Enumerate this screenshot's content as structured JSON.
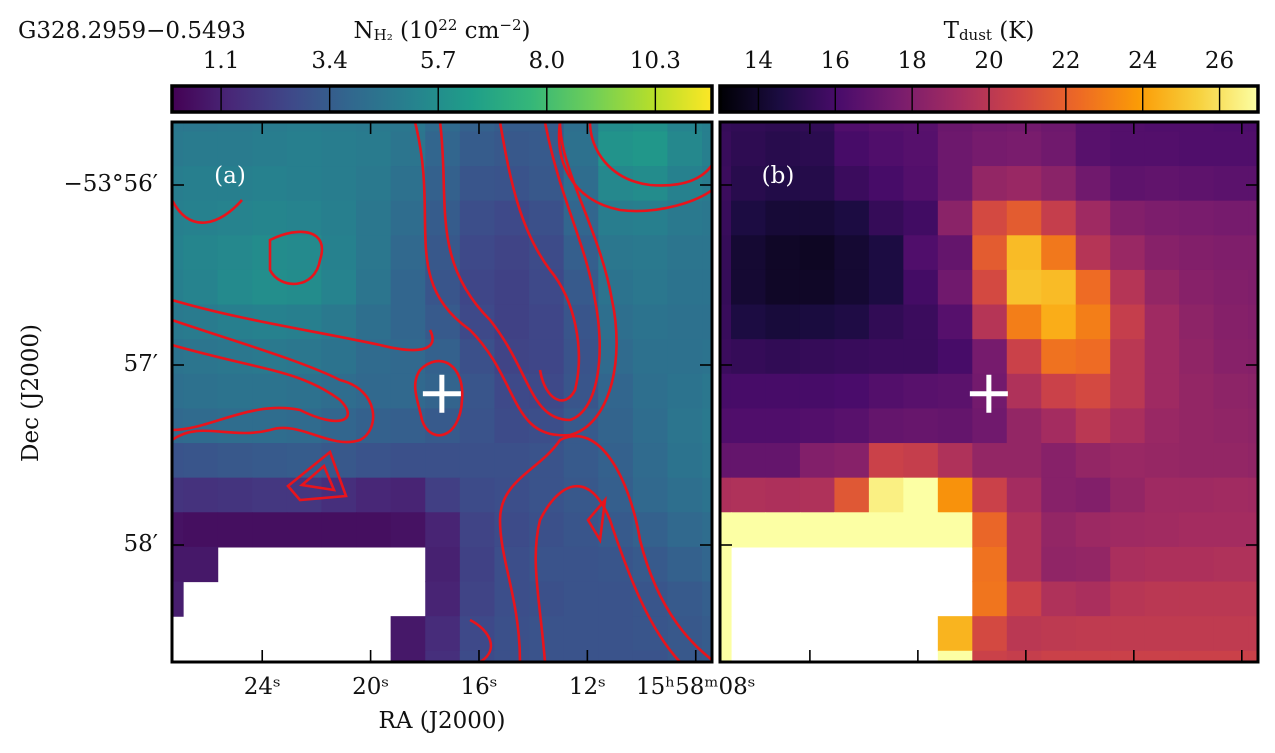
{
  "chart_data": [
    {
      "type": "heatmap",
      "object_name": "G328.2959−0.5493",
      "panel_label": "(a)",
      "colorbar_label": [
        {
          "text": "N"
        },
        {
          "text": "H₂",
          "sub": true
        },
        {
          "text": " (10"
        },
        {
          "text": "22",
          "sup": true
        },
        {
          "text": " cm"
        },
        {
          "text": "−2",
          "sup": true
        },
        {
          "text": ")"
        }
      ],
      "cmap": "viridis",
      "clim": [
        0.06,
        11.5
      ],
      "cticks": [
        1.1,
        3.4,
        5.7,
        {
          "value": 8,
          "label": "8.0"
        },
        10.3
      ],
      "xlabel": "RA (J2000)",
      "ylabel": "Dec (J2000)",
      "xlim": [
        27.33,
        7.4
      ],
      "ylim": [
        -3238.65,
        -3235.65
      ],
      "xticks": [
        {
          "value": 24,
          "label": "24ˢ"
        },
        {
          "value": 20,
          "label": "20ˢ"
        },
        {
          "value": 16,
          "label": "16ˢ"
        },
        {
          "value": 12,
          "label": "12ˢ"
        },
        {
          "value": 8,
          "label": "15ʰ58ᵐ08ˢ"
        }
      ],
      "yticks": [
        {
          "value": -3236,
          "label": "−53°56′"
        },
        {
          "value": -3237,
          "label": "57′"
        },
        {
          "value": -3238,
          "label": "58′"
        }
      ],
      "extent": [
        28.2,
        6.49,
        -3238.78,
        -3235.51
      ],
      "origin": "upper",
      "marker": {
        "x": 17.37,
        "y": -3237.16
      },
      "z": [
        [
          4.6,
          4.6,
          4.7,
          4.8,
          4.9,
          4.8,
          4.7,
          4.6,
          4.0,
          3.6,
          3.4,
          3.4,
          4.2,
          5.6,
          5.8,
          5.2,
          5.0
        ],
        [
          4.7,
          4.8,
          4.8,
          4.9,
          5.0,
          4.9,
          4.8,
          4.5,
          3.8,
          3.4,
          3.2,
          3.3,
          4.3,
          5.9,
          6.1,
          5.4,
          5.0
        ],
        [
          4.9,
          5.0,
          5.0,
          5.1,
          5.0,
          4.9,
          4.7,
          4.3,
          3.6,
          3.1,
          3.0,
          3.2,
          4.1,
          5.4,
          5.6,
          5.1,
          4.8
        ],
        [
          5.0,
          5.1,
          5.2,
          5.3,
          5.2,
          5.0,
          4.6,
          4.1,
          3.4,
          2.8,
          2.6,
          2.9,
          3.8,
          4.9,
          5.0,
          4.7,
          4.6
        ],
        [
          5.1,
          5.3,
          5.4,
          5.6,
          5.5,
          5.1,
          4.6,
          3.9,
          3.2,
          2.6,
          2.4,
          2.7,
          3.5,
          4.6,
          4.7,
          4.5,
          4.5
        ],
        [
          5.0,
          5.2,
          5.5,
          5.7,
          5.6,
          5.2,
          4.5,
          3.8,
          3.1,
          2.5,
          2.3,
          2.6,
          3.3,
          4.4,
          4.6,
          4.4,
          4.4
        ],
        [
          4.7,
          4.8,
          5.0,
          5.1,
          5.0,
          4.7,
          4.2,
          3.8,
          3.3,
          2.6,
          2.3,
          2.5,
          3.1,
          4.2,
          4.4,
          4.3,
          4.3
        ],
        [
          4.4,
          4.5,
          4.6,
          4.7,
          4.6,
          4.4,
          4.0,
          3.9,
          3.6,
          2.9,
          2.4,
          2.5,
          3.0,
          4.0,
          4.3,
          4.3,
          4.4
        ],
        [
          4.2,
          4.3,
          4.4,
          4.4,
          4.3,
          4.1,
          3.9,
          3.9,
          3.7,
          3.1,
          2.6,
          2.6,
          3.1,
          3.8,
          4.2,
          4.4,
          4.6
        ],
        [
          3.9,
          4.0,
          4.1,
          4.1,
          4.0,
          3.8,
          3.6,
          3.5,
          3.3,
          3.0,
          2.7,
          2.8,
          3.3,
          3.7,
          4.1,
          4.5,
          4.7
        ],
        [
          3.0,
          3.1,
          3.2,
          3.3,
          3.4,
          3.2,
          3.0,
          2.9,
          2.9,
          2.9,
          2.9,
          3.0,
          3.3,
          3.6,
          4.0,
          4.4,
          4.6
        ],
        [
          1.8,
          1.7,
          1.8,
          1.9,
          1.9,
          1.6,
          1.3,
          1.2,
          2.2,
          2.7,
          2.8,
          3.0,
          3.2,
          3.5,
          3.9,
          4.2,
          4.4
        ],
        [
          0.6,
          0.5,
          0.5,
          0.5,
          0.5,
          0.5,
          0.5,
          0.6,
          1.2,
          2.4,
          2.7,
          2.9,
          3.1,
          3.3,
          3.6,
          3.9,
          4.1
        ],
        [
          0.8,
          0.8,
          null,
          null,
          null,
          null,
          null,
          null,
          1.1,
          2.3,
          2.8,
          3.0,
          3.0,
          3.1,
          3.3,
          3.6,
          3.8
        ],
        [
          1.0,
          null,
          null,
          null,
          null,
          null,
          null,
          null,
          1.2,
          2.4,
          2.8,
          2.9,
          3.0,
          3.0,
          3.1,
          3.3,
          3.5
        ],
        [
          null,
          null,
          null,
          null,
          null,
          null,
          null,
          0.8,
          1.5,
          2.6,
          2.9,
          3.0,
          3.0,
          3.0,
          3.1,
          3.2,
          3.4
        ],
        [
          null,
          null,
          null,
          null,
          null,
          null,
          null,
          0.8,
          1.6,
          2.7,
          2.9,
          3.0,
          3.0,
          3.0,
          3.0,
          3.2,
          3.3
        ]
      ]
    },
    {
      "type": "heatmap",
      "panel_label": "(b)",
      "colorbar_label": [
        {
          "text": "T"
        },
        {
          "text": "dust",
          "sub": true
        },
        {
          "text": " (K)"
        }
      ],
      "cmap": "inferno",
      "clim": [
        13,
        27
      ],
      "cticks": [
        14,
        16,
        18,
        20,
        22,
        24,
        26
      ],
      "z": [
        [
          15.4,
          15.3,
          15.2,
          15.3,
          16.3,
          16.5,
          16.6,
          17.2,
          17.4,
          17.5,
          17.3,
          16.6,
          16.4,
          16.3,
          16.3,
          16.2,
          16.2
        ],
        [
          15.5,
          15.2,
          15.0,
          15.1,
          16.0,
          16.3,
          16.5,
          17.3,
          17.6,
          17.7,
          17.4,
          16.6,
          16.4,
          16.4,
          16.3,
          16.3,
          16.3
        ],
        [
          15.6,
          15.0,
          14.8,
          14.9,
          15.6,
          16.0,
          16.4,
          17.3,
          18.6,
          18.8,
          18.3,
          17.4,
          16.8,
          16.9,
          16.8,
          16.7,
          16.7
        ],
        [
          15.5,
          14.6,
          14.3,
          14.3,
          14.6,
          15.4,
          15.8,
          18.3,
          21.0,
          21.8,
          20.4,
          19.0,
          18.0,
          17.8,
          17.7,
          17.6,
          17.6
        ],
        [
          15.4,
          14.2,
          13.9,
          13.8,
          14.2,
          14.6,
          16.3,
          17.0,
          21.8,
          24.8,
          22.8,
          19.8,
          18.8,
          18.2,
          18.0,
          17.9,
          17.9
        ],
        [
          15.4,
          14.2,
          13.9,
          13.9,
          14.2,
          14.6,
          15.9,
          17.4,
          21.0,
          25.0,
          24.8,
          22.4,
          19.8,
          18.6,
          18.2,
          18.0,
          17.9
        ],
        [
          15.5,
          14.6,
          14.4,
          14.5,
          14.7,
          15.3,
          15.6,
          16.5,
          19.8,
          23.0,
          24.4,
          23.0,
          20.4,
          19.0,
          18.4,
          18.1,
          18.0
        ],
        [
          15.6,
          15.4,
          15.3,
          15.4,
          15.5,
          15.6,
          15.6,
          16.0,
          17.6,
          20.6,
          22.6,
          22.4,
          20.0,
          19.0,
          18.5,
          18.2,
          18.1
        ],
        [
          16.0,
          16.0,
          16.0,
          16.0,
          16.1,
          16.4,
          16.6,
          16.7,
          17.5,
          19.6,
          20.6,
          21.0,
          20.0,
          19.0,
          18.6,
          18.4,
          18.3
        ],
        [
          16.3,
          16.3,
          16.3,
          16.4,
          16.6,
          17.0,
          17.1,
          17.0,
          17.4,
          18.6,
          19.2,
          20.0,
          19.4,
          18.8,
          18.6,
          18.5,
          18.4
        ],
        [
          17.0,
          17.0,
          17.0,
          18.0,
          18.2,
          20.6,
          20.4,
          19.6,
          18.6,
          18.6,
          18.2,
          18.6,
          18.8,
          18.7,
          18.6,
          18.6,
          18.5
        ],
        [
          19.5,
          19.6,
          19.5,
          19.6,
          21.6,
          26.5,
          27.0,
          23.6,
          20.6,
          19.2,
          18.2,
          18.0,
          18.6,
          19.0,
          19.0,
          19.1,
          19.0
        ],
        [
          27.0,
          27.0,
          27.0,
          27.0,
          27.0,
          27.0,
          27.0,
          27.0,
          22.2,
          19.6,
          18.6,
          18.9,
          19.0,
          19.1,
          19.2,
          19.2,
          19.2
        ],
        [
          27.0,
          null,
          null,
          null,
          null,
          null,
          null,
          null,
          22.6,
          19.6,
          18.5,
          18.6,
          19.4,
          19.5,
          19.5,
          19.6,
          19.6
        ],
        [
          27.0,
          null,
          null,
          null,
          null,
          null,
          null,
          null,
          22.7,
          20.6,
          19.6,
          19.4,
          19.9,
          20.0,
          20.0,
          20.0,
          20.0
        ],
        [
          27.0,
          null,
          null,
          null,
          null,
          null,
          null,
          24.6,
          21.0,
          20.0,
          20.1,
          20.2,
          20.2,
          20.2,
          20.2,
          20.2,
          20.2
        ],
        [
          27.0,
          null,
          null,
          null,
          null,
          null,
          null,
          27.0,
          20.6,
          20.4,
          20.6,
          20.6,
          20.6,
          20.6,
          20.6,
          20.6,
          20.6
        ]
      ]
    }
  ]
}
